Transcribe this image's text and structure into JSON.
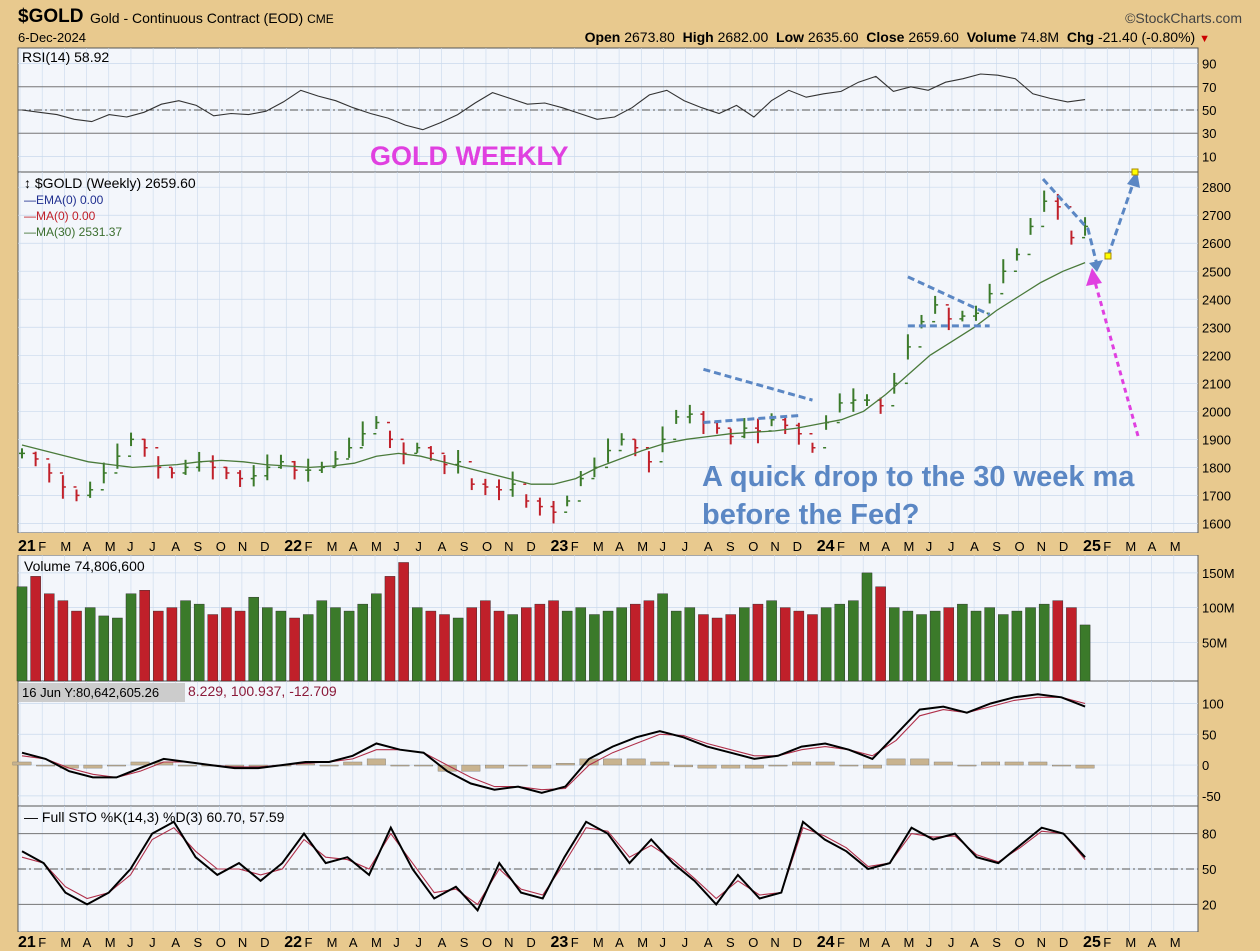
{
  "header": {
    "symbol": "$GOLD",
    "name": "Gold - Continuous Contract (EOD)",
    "exchange": "CME",
    "date": "6-Dec-2024",
    "logo": "©StockCharts.com",
    "open_label": "Open",
    "open": "2673.80",
    "high_label": "High",
    "high": "2682.00",
    "low_label": "Low",
    "low": "2635.60",
    "close_label": "Close",
    "close": "2659.60",
    "volume_label": "Volume",
    "volume": "74.8M",
    "chg_label": "Chg",
    "chg": "-21.40 (-0.80%)"
  },
  "colors": {
    "up": "#3b7a2a",
    "down": "#c0202a",
    "ma30": "#4a7a3a",
    "annotation": "#5b87c4",
    "magenta": "#e040e0",
    "panel_bg": "#f3f6fb",
    "grid": "#c9d9ec"
  },
  "chart_data": [
    {
      "type": "line",
      "panel": "rsi",
      "title": "RSI(14) 58.92",
      "ylim": [
        0,
        100
      ],
      "yticks": [
        10,
        30,
        50,
        70,
        90
      ],
      "annotation": "GOLD WEEKLY",
      "series": [
        {
          "name": "RSI(14)",
          "values": [
            50,
            48,
            46,
            42,
            40,
            46,
            44,
            48,
            55,
            58,
            54,
            45,
            47,
            46,
            49,
            57,
            67,
            62,
            58,
            52,
            47,
            43,
            37,
            33,
            39,
            46,
            56,
            65,
            60,
            55,
            56,
            52,
            47,
            42,
            44,
            52,
            63,
            67,
            58,
            52,
            47,
            54,
            44,
            58,
            67,
            61,
            64,
            66,
            74,
            79,
            66,
            70,
            67,
            74,
            77,
            81,
            80,
            77,
            64,
            60,
            57,
            59
          ]
        }
      ]
    },
    {
      "type": "ohlc",
      "panel": "price",
      "title": "$GOLD (Weekly) 2659.60",
      "ylim": [
        1580,
        2840
      ],
      "yticks": [
        1600,
        1700,
        1800,
        1900,
        2000,
        2100,
        2200,
        2300,
        2400,
        2500,
        2600,
        2700,
        2800
      ],
      "legend": [
        {
          "name": "$GOLD (Weekly) 2659.60",
          "color": "#000000"
        },
        {
          "name": "EMA(0) 0.00",
          "color": "#1f2f8f"
        },
        {
          "name": "MA(0) 0.00",
          "color": "#c0202a"
        },
        {
          "name": "MA(30) 2531.37",
          "color": "#3b6e2e"
        }
      ],
      "x_labels": [
        "21",
        "F",
        "M",
        "A",
        "M",
        "J",
        "J",
        "A",
        "S",
        "O",
        "N",
        "D",
        "22",
        "F",
        "M",
        "A",
        "M",
        "J",
        "J",
        "A",
        "S",
        "O",
        "N",
        "D",
        "23",
        "F",
        "M",
        "A",
        "M",
        "J",
        "J",
        "A",
        "S",
        "O",
        "N",
        "D",
        "24",
        "F",
        "M",
        "A",
        "M",
        "J",
        "J",
        "A",
        "S",
        "O",
        "N",
        "D",
        "25",
        "F",
        "M",
        "A",
        "M"
      ],
      "series": [
        {
          "name": "$GOLD",
          "values": [
            1850,
            1830,
            1780,
            1730,
            1700,
            1720,
            1780,
            1840,
            1900,
            1870,
            1800,
            1780,
            1800,
            1820,
            1800,
            1780,
            1760,
            1770,
            1800,
            1820,
            1790,
            1790,
            1800,
            1830,
            1870,
            1920,
            1960,
            1900,
            1850,
            1870,
            1850,
            1810,
            1820,
            1740,
            1730,
            1720,
            1740,
            1680,
            1660,
            1640,
            1680,
            1760,
            1800,
            1860,
            1900,
            1870,
            1820,
            1900,
            1980,
            1990,
            1960,
            1940,
            1910,
            1940,
            1930,
            1970,
            1950,
            1920,
            1870,
            1960,
            2030,
            2040,
            2040,
            2020,
            2100,
            2230,
            2320,
            2380,
            2330,
            2340,
            2350,
            2420,
            2500,
            2560,
            2660,
            2750,
            2730,
            2620,
            2660
          ]
        },
        {
          "name": "MA(30)",
          "values": [
            1880,
            1860,
            1840,
            1820,
            1810,
            1800,
            1805,
            1810,
            1820,
            1825,
            1820,
            1810,
            1805,
            1800,
            1805,
            1815,
            1840,
            1850,
            1840,
            1820,
            1800,
            1780,
            1760,
            1740,
            1740,
            1760,
            1800,
            1830,
            1860,
            1885,
            1900,
            1910,
            1920,
            1925,
            1930,
            1940,
            1955,
            1970,
            2000,
            2060,
            2130,
            2200,
            2250,
            2300,
            2360,
            2410,
            2460,
            2500,
            2531
          ]
        }
      ],
      "annotations": [
        "A quick drop to the 30 week ma",
        "before the Fed?"
      ]
    },
    {
      "type": "bar",
      "panel": "volume",
      "title": "Volume 74,806,600",
      "ylim": [
        0,
        170
      ],
      "yticks_labels": [
        "50M",
        "100M",
        "150M"
      ],
      "series": [
        {
          "name": "Volume",
          "values": [
            130,
            145,
            120,
            110,
            95,
            100,
            88,
            85,
            120,
            125,
            95,
            100,
            110,
            105,
            90,
            100,
            95,
            115,
            100,
            95,
            85,
            90,
            110,
            100,
            95,
            105,
            120,
            145,
            165,
            100,
            95,
            90,
            85,
            100,
            110,
            95,
            90,
            100,
            105,
            110,
            95,
            100,
            90,
            95,
            100,
            105,
            110,
            120,
            95,
            100,
            90,
            85,
            90,
            100,
            105,
            110,
            100,
            95,
            90,
            100,
            105,
            110,
            150,
            130,
            100,
            95,
            90,
            95,
            100,
            105,
            95,
            100,
            90,
            95,
            100,
            105,
            110,
            100,
            75
          ]
        }
      ]
    },
    {
      "type": "line",
      "panel": "macd",
      "title": "8.229, 100.937, -12.709",
      "tooltip": "16 Jun Y:80,642,605.26",
      "ylim": [
        -60,
        130
      ],
      "yticks": [
        -50,
        0,
        50,
        100
      ],
      "series": [
        {
          "name": "MACD",
          "values": [
            20,
            10,
            -10,
            -20,
            -20,
            -5,
            10,
            5,
            0,
            -5,
            -5,
            0,
            5,
            5,
            15,
            35,
            25,
            20,
            -10,
            -30,
            -40,
            -35,
            -45,
            -35,
            10,
            30,
            45,
            55,
            45,
            30,
            20,
            10,
            15,
            30,
            35,
            25,
            10,
            50,
            90,
            95,
            85,
            100,
            110,
            115,
            110,
            95
          ]
        },
        {
          "name": "Signal",
          "values": [
            15,
            10,
            -5,
            -15,
            -20,
            -10,
            5,
            5,
            0,
            -3,
            -3,
            0,
            3,
            5,
            10,
            25,
            25,
            20,
            0,
            -20,
            -35,
            -35,
            -40,
            -38,
            0,
            20,
            35,
            50,
            48,
            35,
            25,
            15,
            15,
            25,
            30,
            25,
            15,
            40,
            80,
            90,
            85,
            95,
            105,
            110,
            110,
            100
          ]
        },
        {
          "name": "Histogram",
          "values": [
            5,
            0,
            -5,
            -5,
            0,
            5,
            5,
            0,
            0,
            -2,
            -2,
            0,
            2,
            0,
            5,
            10,
            0,
            0,
            -10,
            -10,
            -5,
            0,
            -5,
            3,
            10,
            10,
            10,
            5,
            -3,
            -5,
            -5,
            -5,
            0,
            5,
            5,
            0,
            -5,
            10,
            10,
            5,
            0,
            5,
            5,
            5,
            0,
            -5
          ]
        }
      ]
    },
    {
      "type": "line",
      "panel": "sto",
      "title": "Full STO %K(14,3) %D(3) 60.70, 57.59",
      "ylim": [
        0,
        100
      ],
      "yticks": [
        20,
        50,
        80
      ],
      "series": [
        {
          "name": "%K",
          "values": [
            65,
            55,
            30,
            20,
            30,
            50,
            80,
            90,
            60,
            45,
            55,
            40,
            55,
            80,
            55,
            60,
            45,
            85,
            50,
            25,
            35,
            15,
            55,
            30,
            25,
            60,
            90,
            80,
            55,
            75,
            55,
            40,
            20,
            45,
            25,
            30,
            90,
            75,
            65,
            50,
            55,
            85,
            75,
            80,
            60,
            55,
            70,
            85,
            80,
            60
          ]
        },
        {
          "name": "%D",
          "values": [
            60,
            55,
            35,
            25,
            30,
            45,
            75,
            85,
            65,
            50,
            50,
            45,
            50,
            75,
            60,
            58,
            50,
            80,
            55,
            30,
            33,
            20,
            50,
            33,
            28,
            55,
            85,
            82,
            60,
            70,
            58,
            42,
            25,
            40,
            28,
            30,
            85,
            78,
            68,
            52,
            55,
            80,
            77,
            78,
            62,
            56,
            68,
            82,
            80,
            58
          ]
        }
      ]
    }
  ]
}
